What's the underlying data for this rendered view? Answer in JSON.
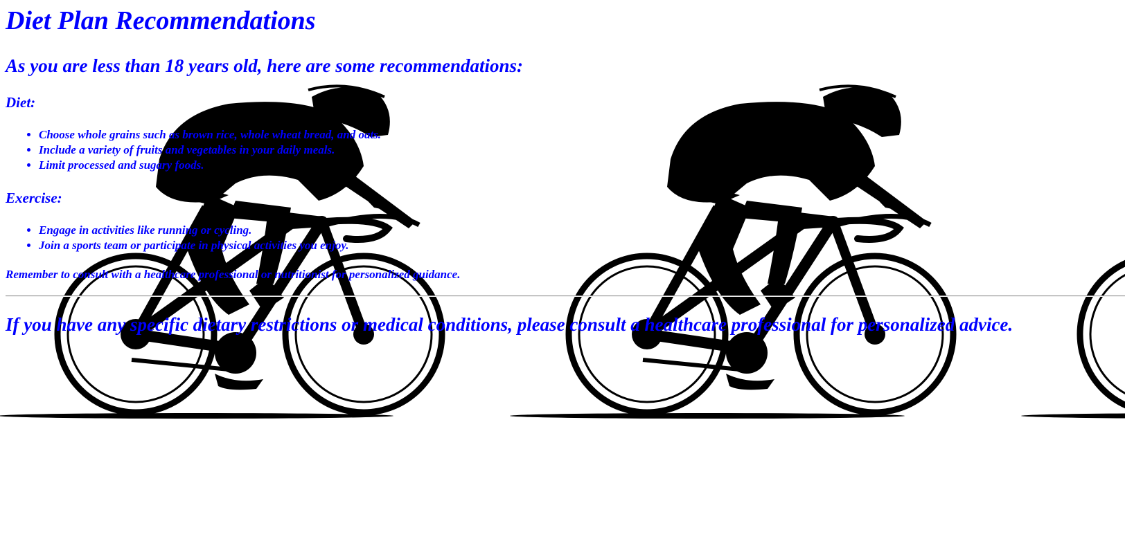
{
  "page": {
    "title": "Diet Plan Recommendations",
    "subtitle": "As you are less than 18 years old, here are some recommendations:",
    "diet_heading": "Diet:",
    "diet_items": [
      "Choose whole grains such as brown rice, whole wheat bread, and oats.",
      "Include a variety of fruits and vegetables in your daily meals.",
      "Limit processed and sugary foods."
    ],
    "exercise_heading": "Exercise:",
    "exercise_items": [
      "Engage in activities like running or cycling.",
      "Join a sports team or participate in physical activities you enjoy."
    ],
    "reminder": "Remember to consult with a healthcare professional or nutritionist for personalized guidance.",
    "advice": "If you have any specific dietary restrictions or medical conditions, please consult a healthcare professional for personalized advice."
  },
  "background": {
    "icon": "cyclist-silhouette-icon",
    "color": "#000000"
  },
  "colors": {
    "text": "#0000ff",
    "background": "#ffffff"
  }
}
